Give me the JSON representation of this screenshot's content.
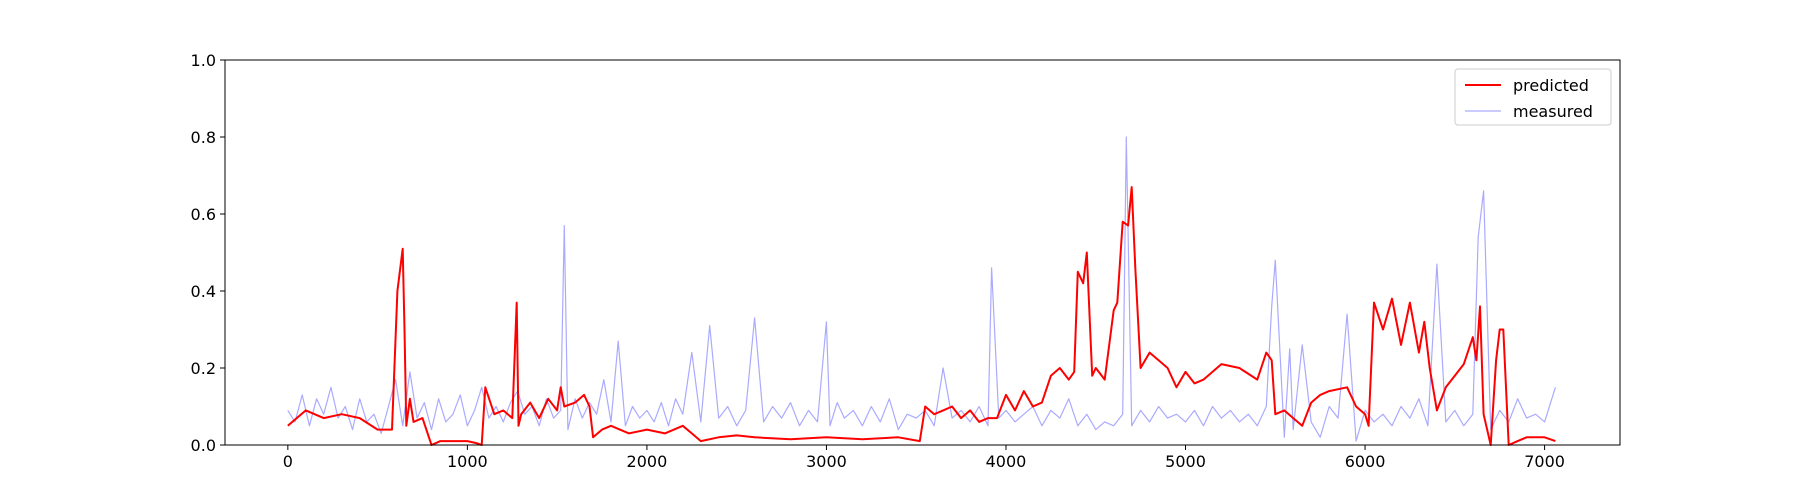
{
  "chart_data": {
    "type": "line",
    "title": "",
    "xlabel": "",
    "ylabel": "",
    "xlim": [
      -350,
      7420
    ],
    "ylim": [
      0.0,
      1.0
    ],
    "xticks": [
      0,
      1000,
      2000,
      3000,
      4000,
      5000,
      6000,
      7000
    ],
    "yticks": [
      0.0,
      0.2,
      0.4,
      0.6,
      0.8,
      1.0
    ],
    "grid": false,
    "legend_position": "top-right",
    "series": [
      {
        "name": "predicted",
        "color": "#ff0000",
        "x": [
          0,
          100,
          200,
          300,
          400,
          500,
          580,
          610,
          640,
          650,
          660,
          680,
          700,
          750,
          800,
          850,
          900,
          1000,
          1050,
          1080,
          1100,
          1150,
          1200,
          1250,
          1275,
          1285,
          1300,
          1350,
          1400,
          1450,
          1500,
          1520,
          1540,
          1600,
          1650,
          1680,
          1700,
          1750,
          1800,
          1900,
          2000,
          2100,
          2200,
          2250,
          2300,
          2400,
          2500,
          2600,
          2800,
          3000,
          3200,
          3400,
          3520,
          3550,
          3600,
          3650,
          3700,
          3750,
          3800,
          3850,
          3900,
          3950,
          4000,
          4050,
          4100,
          4150,
          4200,
          4250,
          4300,
          4350,
          4380,
          4400,
          4430,
          4450,
          4480,
          4500,
          4550,
          4600,
          4620,
          4650,
          4680,
          4700,
          4720,
          4750,
          4800,
          4850,
          4900,
          4950,
          5000,
          5050,
          5100,
          5200,
          5300,
          5400,
          5450,
          5480,
          5500,
          5550,
          5600,
          5650,
          5700,
          5750,
          5800,
          5900,
          5950,
          6000,
          6020,
          6050,
          6100,
          6150,
          6200,
          6250,
          6300,
          6330,
          6360,
          6400,
          6450,
          6500,
          6550,
          6600,
          6620,
          6640,
          6660,
          6700,
          6730,
          6750,
          6770,
          6800,
          6850,
          6900,
          7000,
          7060
        ],
        "y": [
          0.05,
          0.09,
          0.07,
          0.08,
          0.07,
          0.04,
          0.04,
          0.4,
          0.51,
          0.3,
          0.05,
          0.12,
          0.06,
          0.07,
          0.0,
          0.01,
          0.01,
          0.01,
          0.005,
          0.0,
          0.15,
          0.08,
          0.09,
          0.07,
          0.37,
          0.05,
          0.08,
          0.11,
          0.07,
          0.12,
          0.09,
          0.15,
          0.1,
          0.11,
          0.13,
          0.1,
          0.02,
          0.04,
          0.05,
          0.03,
          0.04,
          0.03,
          0.05,
          0.03,
          0.01,
          0.02,
          0.025,
          0.02,
          0.015,
          0.02,
          0.015,
          0.02,
          0.01,
          0.1,
          0.08,
          0.09,
          0.1,
          0.07,
          0.09,
          0.06,
          0.07,
          0.07,
          0.13,
          0.09,
          0.14,
          0.1,
          0.11,
          0.18,
          0.2,
          0.17,
          0.19,
          0.45,
          0.42,
          0.5,
          0.18,
          0.2,
          0.17,
          0.35,
          0.37,
          0.58,
          0.57,
          0.67,
          0.46,
          0.2,
          0.24,
          0.22,
          0.2,
          0.15,
          0.19,
          0.16,
          0.17,
          0.21,
          0.2,
          0.17,
          0.24,
          0.22,
          0.08,
          0.09,
          0.07,
          0.05,
          0.11,
          0.13,
          0.14,
          0.15,
          0.1,
          0.08,
          0.05,
          0.37,
          0.3,
          0.38,
          0.26,
          0.37,
          0.24,
          0.32,
          0.2,
          0.09,
          0.15,
          0.18,
          0.21,
          0.28,
          0.22,
          0.36,
          0.08,
          0.0,
          0.22,
          0.3,
          0.3,
          0.0,
          0.01,
          0.02,
          0.02,
          0.01
        ]
      },
      {
        "name": "measured",
        "color": "#aaaaff",
        "x": [
          0,
          40,
          80,
          120,
          160,
          200,
          240,
          280,
          320,
          360,
          400,
          440,
          480,
          520,
          560,
          600,
          640,
          680,
          720,
          760,
          800,
          840,
          880,
          920,
          960,
          1000,
          1040,
          1080,
          1120,
          1160,
          1200,
          1240,
          1280,
          1320,
          1360,
          1400,
          1440,
          1480,
          1520,
          1540,
          1560,
          1600,
          1640,
          1680,
          1720,
          1760,
          1800,
          1840,
          1880,
          1920,
          1960,
          2000,
          2040,
          2080,
          2120,
          2160,
          2200,
          2250,
          2300,
          2350,
          2400,
          2450,
          2500,
          2550,
          2600,
          2650,
          2700,
          2750,
          2800,
          2850,
          2900,
          2950,
          3000,
          3020,
          3060,
          3100,
          3150,
          3200,
          3250,
          3300,
          3350,
          3400,
          3450,
          3500,
          3550,
          3600,
          3650,
          3700,
          3750,
          3800,
          3850,
          3900,
          3920,
          3960,
          4000,
          4050,
          4100,
          4150,
          4200,
          4250,
          4300,
          4350,
          4400,
          4450,
          4500,
          4550,
          4600,
          4650,
          4670,
          4700,
          4750,
          4800,
          4850,
          4900,
          4950,
          5000,
          5050,
          5100,
          5150,
          5200,
          5250,
          5300,
          5350,
          5400,
          5450,
          5480,
          5500,
          5550,
          5580,
          5600,
          5650,
          5700,
          5750,
          5800,
          5850,
          5900,
          5950,
          6000,
          6050,
          6100,
          6150,
          6200,
          6250,
          6300,
          6350,
          6400,
          6450,
          6500,
          6550,
          6600,
          6630,
          6660,
          6700,
          6750,
          6800,
          6850,
          6900,
          6950,
          7000,
          7060
        ],
        "y": [
          0.09,
          0.06,
          0.13,
          0.05,
          0.12,
          0.08,
          0.15,
          0.07,
          0.1,
          0.04,
          0.12,
          0.06,
          0.08,
          0.03,
          0.1,
          0.17,
          0.05,
          0.19,
          0.07,
          0.11,
          0.04,
          0.12,
          0.06,
          0.08,
          0.13,
          0.05,
          0.09,
          0.15,
          0.07,
          0.1,
          0.06,
          0.11,
          0.14,
          0.08,
          0.1,
          0.05,
          0.12,
          0.07,
          0.09,
          0.57,
          0.04,
          0.12,
          0.07,
          0.11,
          0.08,
          0.17,
          0.06,
          0.27,
          0.05,
          0.1,
          0.07,
          0.09,
          0.06,
          0.11,
          0.05,
          0.12,
          0.08,
          0.24,
          0.06,
          0.31,
          0.07,
          0.1,
          0.05,
          0.09,
          0.33,
          0.06,
          0.1,
          0.07,
          0.11,
          0.05,
          0.09,
          0.06,
          0.32,
          0.05,
          0.11,
          0.07,
          0.09,
          0.05,
          0.1,
          0.06,
          0.12,
          0.04,
          0.08,
          0.07,
          0.09,
          0.05,
          0.2,
          0.07,
          0.09,
          0.06,
          0.1,
          0.05,
          0.46,
          0.07,
          0.09,
          0.06,
          0.08,
          0.1,
          0.05,
          0.09,
          0.07,
          0.12,
          0.05,
          0.08,
          0.04,
          0.06,
          0.05,
          0.08,
          0.8,
          0.05,
          0.09,
          0.06,
          0.1,
          0.07,
          0.08,
          0.06,
          0.09,
          0.05,
          0.1,
          0.07,
          0.09,
          0.06,
          0.08,
          0.05,
          0.1,
          0.36,
          0.48,
          0.02,
          0.25,
          0.04,
          0.26,
          0.06,
          0.02,
          0.1,
          0.07,
          0.34,
          0.01,
          0.09,
          0.06,
          0.08,
          0.05,
          0.1,
          0.07,
          0.12,
          0.05,
          0.47,
          0.06,
          0.09,
          0.05,
          0.08,
          0.54,
          0.66,
          0.04,
          0.09,
          0.06,
          0.12,
          0.07,
          0.08,
          0.06,
          0.15
        ]
      }
    ]
  }
}
